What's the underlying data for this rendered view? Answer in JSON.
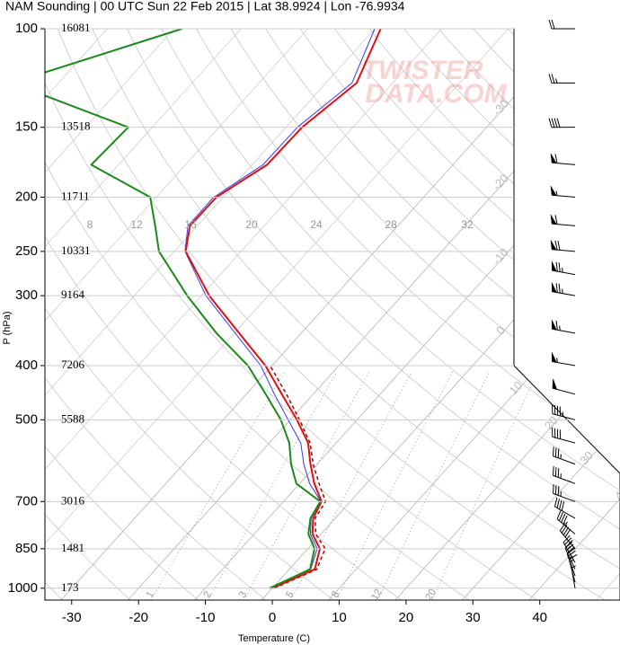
{
  "chart_data": {
    "type": "skewt",
    "title": "NAM Sounding | 00 UTC Sun 22 Feb 2015 | Lat 38.9924 | Lon -76.9934",
    "watermark": [
      "TWISTER",
      "DATA.COM"
    ],
    "x_label": "Temperature (C)",
    "y_label": "P (hPa)",
    "xlim": [
      -34,
      52
    ],
    "xticks": [
      -30,
      -20,
      -10,
      0,
      10,
      20,
      30,
      40
    ],
    "ylim": [
      1050,
      100
    ],
    "yticks": [
      100,
      150,
      200,
      250,
      300,
      400,
      500,
      700,
      850,
      1000
    ],
    "log_y": true,
    "heights": [
      16081,
      13518,
      11711,
      10331,
      9164,
      7206,
      5588,
      3016,
      1481,
      173
    ],
    "pressure": [
      1000,
      925,
      850,
      800,
      750,
      700,
      650,
      600,
      550,
      500,
      450,
      400,
      350,
      300,
      250,
      225,
      200,
      175,
      150,
      125,
      100
    ],
    "series": [
      {
        "color": "#3a3aee",
        "width": 1,
        "values": [
          -0.3,
          3.2,
          1.4,
          -1.6,
          -3.6,
          -4.4,
          -8.5,
          -12.0,
          -15.3,
          -20.3,
          -25.8,
          -31.7,
          -39.9,
          -49.3,
          -58.4,
          -61.4,
          -61.4,
          -58.4,
          -58.3,
          -56.1,
          -60.0
        ]
      },
      {
        "color": "#b00000",
        "width": 1.5,
        "dash": true,
        "values": [
          0.3,
          4.1,
          2.6,
          -0.8,
          -3.0,
          -3.7,
          -7.1,
          -10.6,
          -13.9,
          -18.6,
          -24.0,
          -30.3,
          null,
          null,
          null,
          null,
          null,
          null,
          null,
          null,
          null
        ]
      },
      {
        "color": "#e01010",
        "width": 2,
        "values": [
          0.0,
          3.8,
          1.8,
          -1.3,
          -3.3,
          -4.3,
          -7.8,
          -11.0,
          -14.2,
          -19.0,
          -24.7,
          -31.0,
          -39.3,
          -48.8,
          -58.3,
          -61.1,
          -61.0,
          -57.8,
          -57.6,
          -55.4,
          -59.1
        ]
      },
      {
        "color": "#1a8a1a",
        "width": 2,
        "values": [
          -0.4,
          3.1,
          1.0,
          -1.9,
          -3.7,
          -4.5,
          -10.5,
          -13.9,
          -17.0,
          -21.4,
          -27.1,
          -33.6,
          -42.7,
          -52.1,
          -62.3,
          -66.3,
          -70.9,
          -84.1,
          -83.6,
          -107,
          -88.8
        ]
      }
    ],
    "mixing_ratios": [
      1,
      2,
      3,
      5,
      8,
      12,
      20
    ],
    "adiabat_labels": [
      8,
      12,
      16,
      20,
      24,
      28,
      32
    ],
    "wind_pressure": [
      100,
      125,
      150,
      175,
      200,
      225,
      250,
      275,
      300,
      350,
      400,
      450,
      500,
      550,
      600,
      650,
      700,
      750,
      800,
      850,
      900,
      925,
      950,
      975,
      1000
    ],
    "wind_direction": [
      270,
      270,
      270,
      275,
      275,
      275,
      275,
      280,
      280,
      280,
      280,
      285,
      285,
      285,
      290,
      290,
      290,
      300,
      310,
      320,
      330,
      335,
      340,
      345,
      350
    ],
    "wind_speed": [
      20,
      25,
      40,
      60,
      55,
      60,
      70,
      75,
      75,
      65,
      55,
      50,
      45,
      40,
      35,
      35,
      35,
      40,
      45,
      40,
      35,
      30,
      25,
      15,
      5
    ]
  }
}
